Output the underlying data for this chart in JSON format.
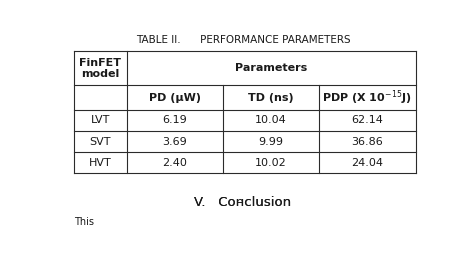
{
  "title": "TABLE II.      PERFORMANCE PARAMETERS",
  "col1_header": "FinFET\nmodel",
  "col_group_header": "Parameters",
  "sub_col1": "PD (μW)",
  "sub_col2": "TD (ns)",
  "sub_col3": "PDP (X 10",
  "sub_col3_sup": "-15",
  "sub_col3_end": "J)",
  "rows": [
    [
      "LVT",
      "6.19",
      "10.04",
      "62.14"
    ],
    [
      "SVT",
      "3.69",
      "9.99",
      "36.86"
    ],
    [
      "HVT",
      "2.40",
      "10.02",
      "24.04"
    ]
  ],
  "footer_text": "V.   Сонсlusion",
  "bg_color": "#ffffff",
  "border_color": "#2b2b2b",
  "text_color": "#1a1a1a",
  "title_fontsize": 7.5,
  "header_fontsize": 8.0,
  "cell_fontsize": 8.0,
  "footer_fontsize": 9.5
}
